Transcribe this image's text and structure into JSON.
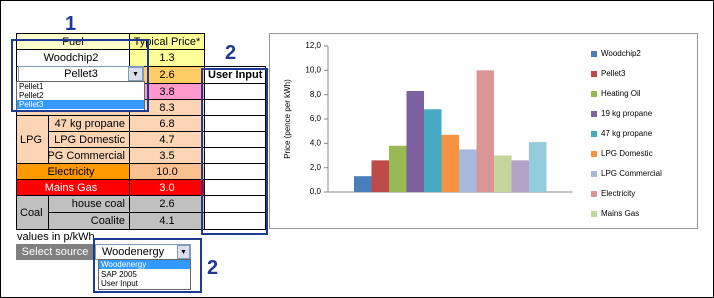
{
  "annotations": [
    "1",
    "2",
    "2"
  ],
  "table": {
    "header": [
      "Fuel",
      "Typical Price*"
    ],
    "user_input_header": "User Input",
    "groups": [
      "LPG",
      "Coal"
    ],
    "rows": [
      {
        "fuel": "Woodchip2",
        "price": "1.3"
      },
      {
        "price": "2.6"
      },
      {
        "price": "3.8"
      },
      {
        "price": "8.3"
      },
      {
        "fuel": "47 kg propane",
        "price": "6.8"
      },
      {
        "fuel": "LPG Domestic",
        "price": "4.7"
      },
      {
        "fuel": "LPG Commercial",
        "price": "3.5"
      },
      {
        "fuel": "Electricity",
        "price": "10.0"
      },
      {
        "fuel": "Mains Gas",
        "price": "3.0"
      },
      {
        "fuel": "house coal",
        "price": "2.6"
      },
      {
        "fuel": "Coalite",
        "price": "4.1"
      }
    ]
  },
  "fuel_dropdown": {
    "selected": "Pellet3",
    "options": [
      "Pellet1",
      "Pellet2",
      "Pellet3"
    ]
  },
  "note": "values in p/kWh",
  "source": {
    "button": "Select source",
    "selected": "Woodenergy",
    "options": [
      "Woodenergy",
      "SAP 2005",
      "User Input"
    ]
  },
  "chart_data": {
    "type": "bar",
    "ylabel": "Price (pence per kWh)",
    "categories": [
      "Woodchip2",
      "Pellet3",
      "Heating Oil",
      "19 kg propane",
      "47 kg propane",
      "LPG Domestic",
      "LPG Commercial",
      "Electricity",
      "Mains Gas",
      null,
      null
    ],
    "values": [
      1.3,
      2.6,
      3.8,
      8.3,
      6.8,
      4.7,
      3.5,
      10.0,
      3.0,
      2.6,
      4.1
    ],
    "colors": [
      "#4a7ebb",
      "#be4b48",
      "#98b954",
      "#7d60a0",
      "#46aac5",
      "#f69240",
      "#a5b9dd",
      "#d99694",
      "#c3d69b",
      "#b3a2c7",
      "#93cddd"
    ],
    "ylim": [
      0,
      12
    ],
    "yticks": [
      {
        "value": 0,
        "label": "0,0"
      },
      {
        "value": 2,
        "label": "2,0"
      },
      {
        "value": 4,
        "label": "4,0"
      },
      {
        "value": 6,
        "label": "6,0"
      },
      {
        "value": 8,
        "label": "8,0"
      },
      {
        "value": 10,
        "label": "10,0"
      },
      {
        "value": 12,
        "label": "12,0"
      }
    ],
    "grid": false,
    "legend": "right"
  }
}
